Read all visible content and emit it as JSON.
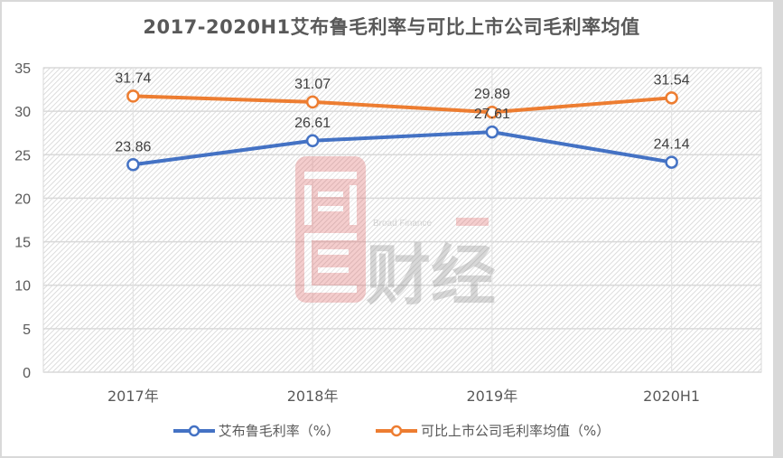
{
  "chart_data": {
    "type": "line",
    "title": "2017-2020H1艾布鲁毛利率与可比上市公司毛利率均值",
    "categories": [
      "2017年",
      "2018年",
      "2019年",
      "2020H1"
    ],
    "series": [
      {
        "name": "艾布鲁毛利率（%）",
        "color": "#4472c4",
        "values": [
          23.86,
          26.61,
          27.61,
          24.14
        ],
        "labels": [
          "23.86",
          "26.61",
          "27.61",
          "24.14"
        ]
      },
      {
        "name": "可比上市公司毛利率均值（%）",
        "color": "#ed7d31",
        "values": [
          31.74,
          31.07,
          29.89,
          31.54
        ],
        "labels": [
          "31.74",
          "31.07",
          "29.89",
          "31.54"
        ]
      }
    ],
    "xlabel": "",
    "ylabel": "",
    "ylim": [
      0,
      35
    ],
    "yticks": [
      "0",
      "5",
      "10",
      "15",
      "20",
      "25",
      "30",
      "35"
    ],
    "grid": true,
    "legend_position": "bottom"
  },
  "watermark": {
    "brand_en": "Broad Finance",
    "brand_cn": "财经"
  }
}
